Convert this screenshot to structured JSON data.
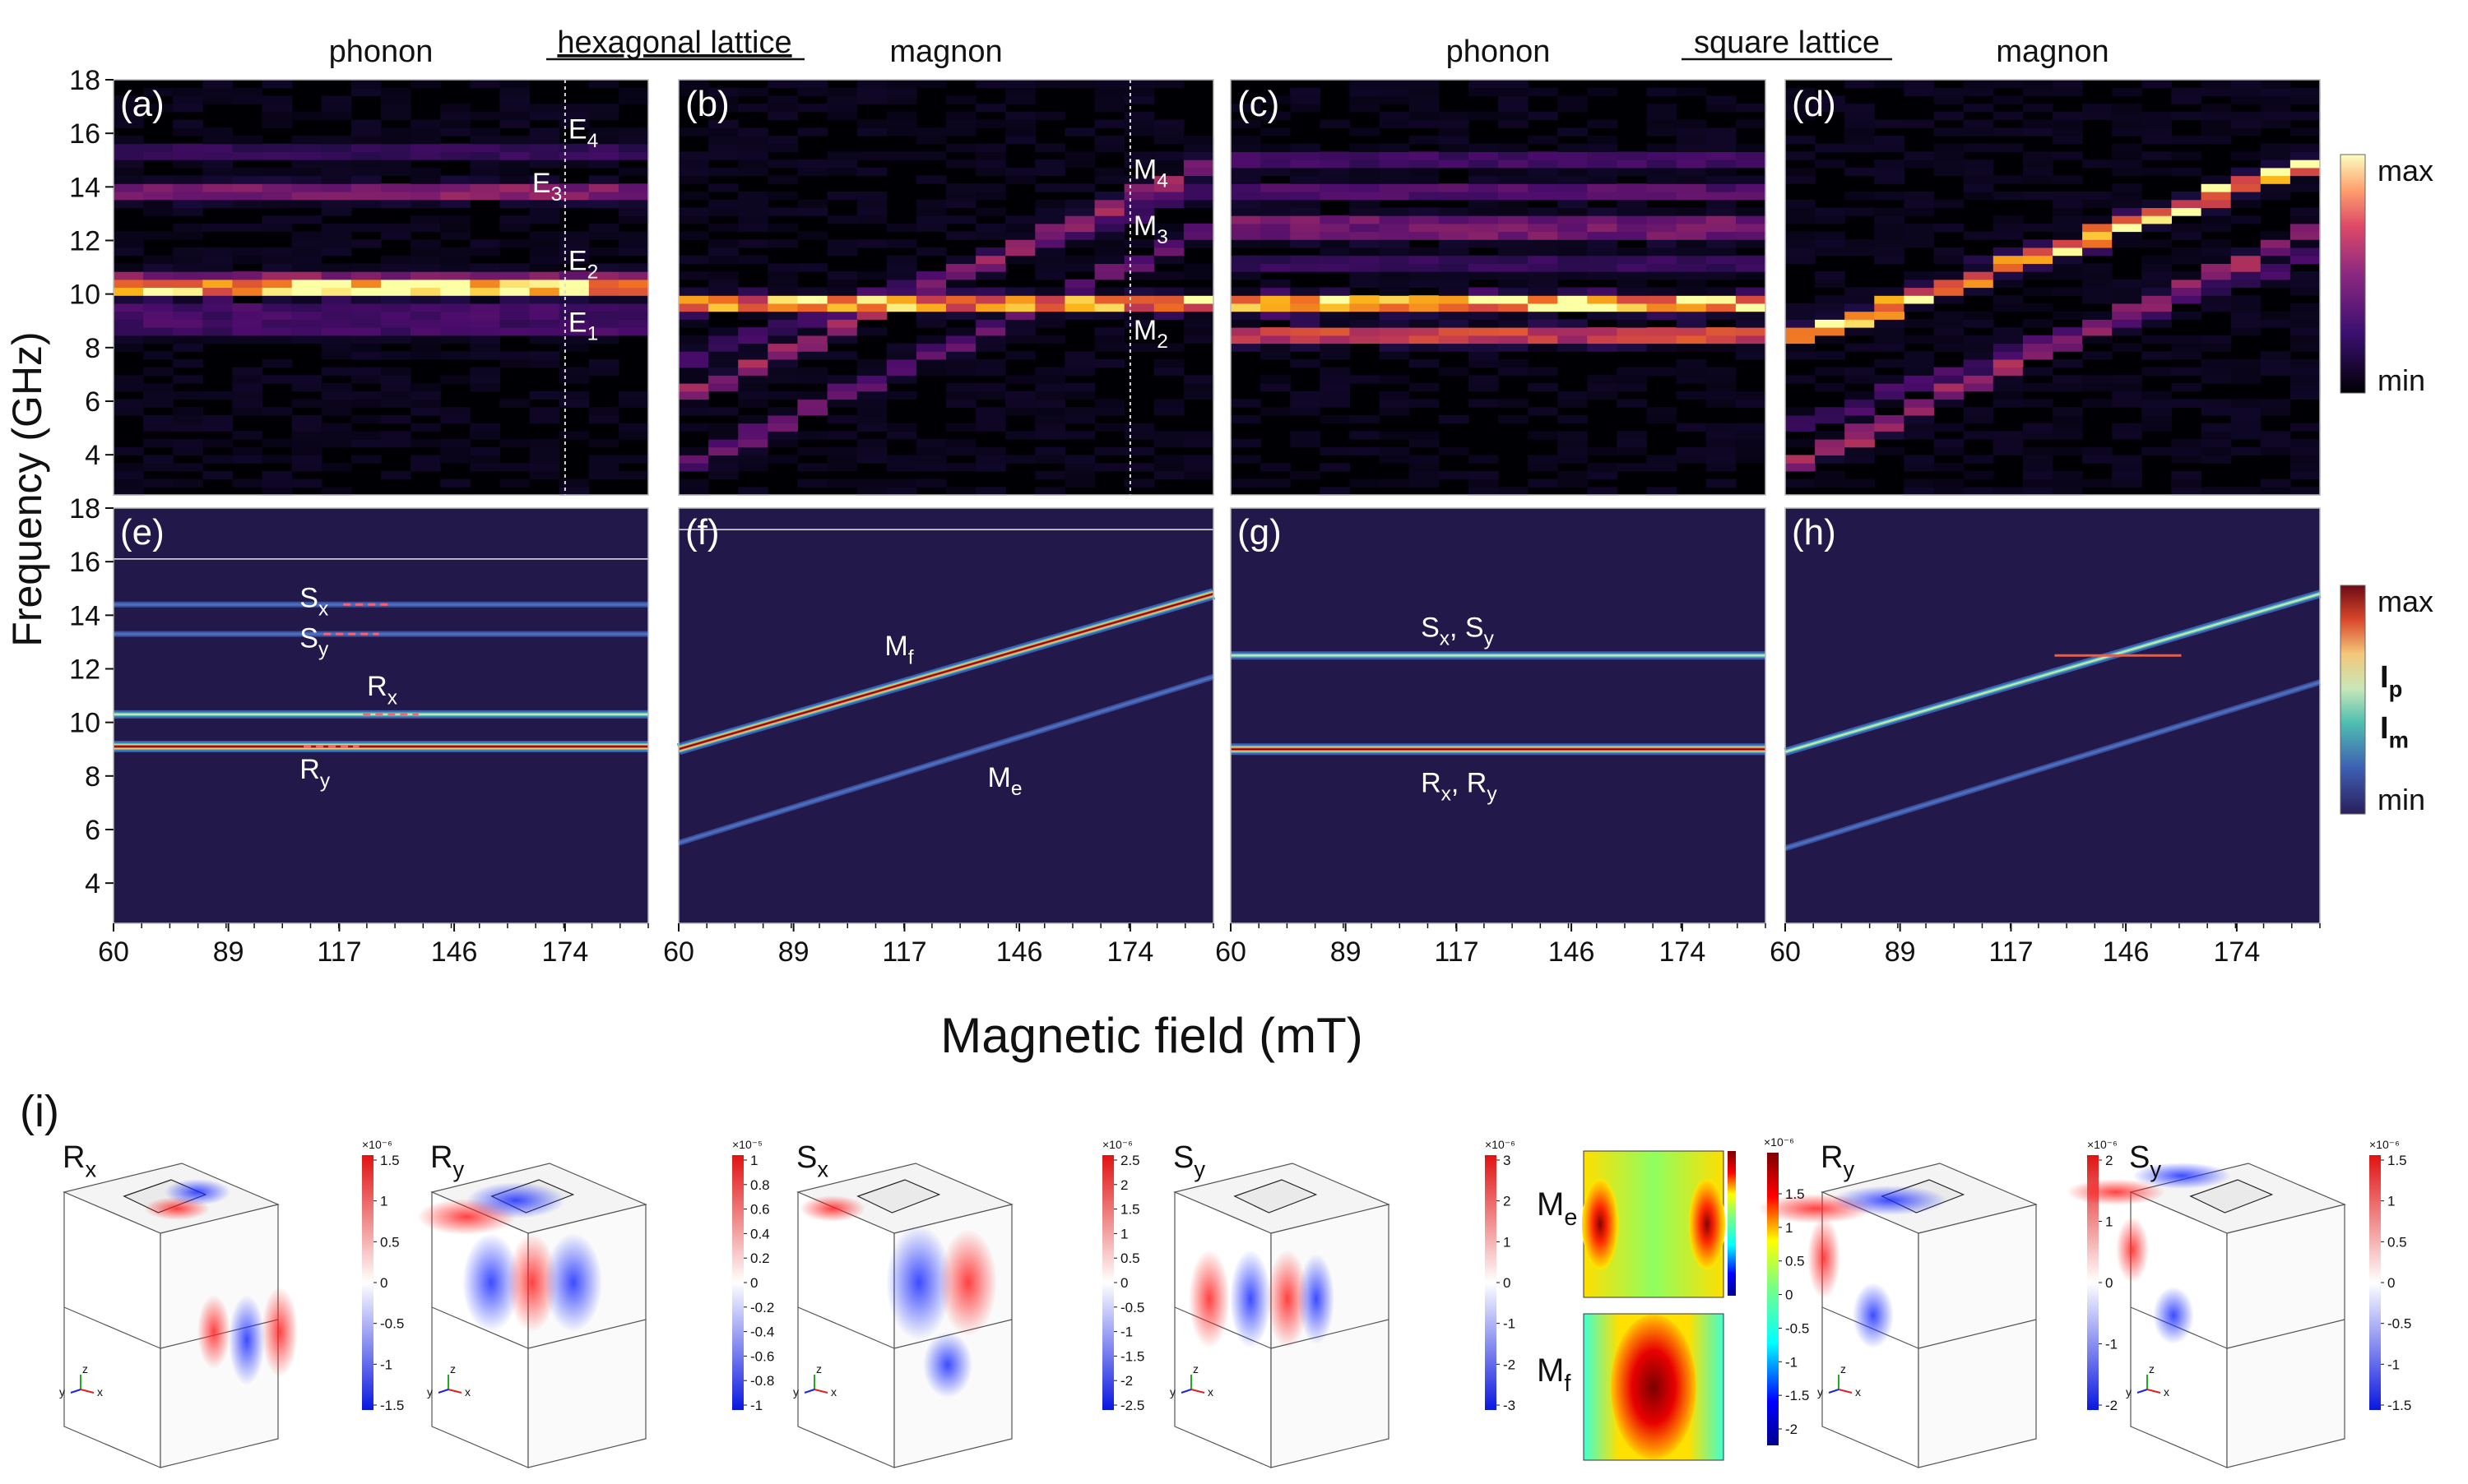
{
  "figure": {
    "group_hex": "hexagonal lattice",
    "group_square": "square lattice",
    "ylabel": "Frequency (GHz)",
    "xlabel": "Magnetic field (mT)",
    "yticks": [
      "18",
      "16",
      "14",
      "12",
      "10",
      "8",
      "6",
      "4"
    ],
    "xticks": [
      "60",
      "89",
      "117",
      "146",
      "174"
    ],
    "colorbar_top": {
      "max": "max",
      "min": "min"
    },
    "colorbar_bottom": {
      "max": "max",
      "ip": "I",
      "ip_sub": "p",
      "im": "I",
      "im_sub": "m",
      "min": "min"
    },
    "panel_i_label": "(i)"
  },
  "chart_data": [
    {
      "id": "a",
      "type": "heatmap",
      "label": "(a)",
      "title": "phonon",
      "x_range": [
        60,
        195
      ],
      "y_range": [
        2.5,
        18
      ],
      "xlabel": "Magnetic field (mT)",
      "ylabel": "Frequency (GHz)",
      "bands": [
        {
          "f": 10.2,
          "level": 1.0
        },
        {
          "f": 10.6,
          "level": 0.55
        },
        {
          "f": 13.9,
          "level": 0.55
        },
        {
          "f": 8.8,
          "level": 0.35
        },
        {
          "f": 9.3,
          "level": 0.35
        },
        {
          "f": 15.4,
          "level": 0.3
        }
      ],
      "marker_field": 174,
      "annotations": [
        {
          "text": "E",
          "sub": "4",
          "f": 15.8
        },
        {
          "text": "E",
          "sub": "3",
          "f": 13.8
        },
        {
          "text": "E",
          "sub": "2",
          "f": 10.9
        },
        {
          "text": "E",
          "sub": "1",
          "f": 8.6
        }
      ]
    },
    {
      "id": "b",
      "type": "heatmap",
      "label": "(b)",
      "title": "magnon",
      "x_range": [
        60,
        195
      ],
      "y_range": [
        2.5,
        18
      ],
      "lines": [
        {
          "f0": 9.6,
          "f1": 9.6,
          "level": 0.95
        },
        {
          "f0": 6.0,
          "f1": 15.0,
          "level": 0.6
        },
        {
          "f0": 3.5,
          "f1": 12.5,
          "level": 0.45
        },
        {
          "f0": 7.5,
          "f1": 14.0,
          "level": 0.35
        }
      ],
      "marker_field": 174,
      "annotations": [
        {
          "text": "M",
          "sub": "4",
          "f": 14.3
        },
        {
          "text": "M",
          "sub": "3",
          "f": 12.2
        },
        {
          "text": "M",
          "sub": "2",
          "f": 8.3
        }
      ]
    },
    {
      "id": "c",
      "type": "heatmap",
      "label": "(c)",
      "title": "phonon",
      "x_range": [
        60,
        195
      ],
      "y_range": [
        2.5,
        18
      ],
      "bands": [
        {
          "f": 9.6,
          "level": 1.0
        },
        {
          "f": 8.4,
          "level": 0.75
        },
        {
          "f": 12.5,
          "level": 0.5
        },
        {
          "f": 13.8,
          "level": 0.4
        },
        {
          "f": 14.9,
          "level": 0.35
        },
        {
          "f": 11.2,
          "level": 0.3
        }
      ]
    },
    {
      "id": "d",
      "type": "heatmap",
      "label": "(d)",
      "title": "magnon",
      "x_range": [
        60,
        195
      ],
      "y_range": [
        2.5,
        18
      ],
      "lines": [
        {
          "f0": 8.2,
          "f1": 15.0,
          "level": 0.95
        },
        {
          "f0": 3.5,
          "f1": 12.5,
          "level": 0.6
        },
        {
          "f0": 5.0,
          "f1": 11.5,
          "level": 0.35
        }
      ]
    },
    {
      "id": "e",
      "type": "line",
      "label": "(e)",
      "x_range": [
        60,
        195
      ],
      "y_range": [
        2.5,
        18
      ],
      "lines": [
        {
          "f": 9.1,
          "kind": "strong"
        },
        {
          "f": 10.3,
          "kind": "medium"
        },
        {
          "f": 13.3,
          "kind": "weak"
        },
        {
          "f": 14.4,
          "kind": "weak"
        },
        {
          "f": 16.1,
          "kind": "thin"
        }
      ],
      "dashes": [
        {
          "f": 14.4,
          "x0": 118,
          "x1": 130
        },
        {
          "f": 13.3,
          "x0": 113,
          "x1": 127
        },
        {
          "f": 10.3,
          "x0": 123,
          "x1": 137
        },
        {
          "f": 9.1,
          "x0": 108,
          "x1": 122
        }
      ],
      "annotations": [
        {
          "text": "S",
          "sub": "x",
          "field": 107,
          "f": 14.3
        },
        {
          "text": "S",
          "sub": "y",
          "field": 107,
          "f": 12.8
        },
        {
          "text": "R",
          "sub": "x",
          "field": 124,
          "f": 11.0
        },
        {
          "text": "R",
          "sub": "y",
          "field": 107,
          "f": 7.9
        }
      ]
    },
    {
      "id": "f",
      "type": "line",
      "label": "(f)",
      "x_range": [
        60,
        195
      ],
      "y_range": [
        2.5,
        18
      ],
      "lines": [
        {
          "f0": 9.0,
          "f1": 14.8,
          "kind": "strong"
        },
        {
          "f0": 5.5,
          "f1": 11.7,
          "kind": "weak"
        },
        {
          "f": 17.2,
          "kind": "thin"
        }
      ],
      "annotations": [
        {
          "text": "M",
          "sub": "f",
          "field": 112,
          "f": 12.5
        },
        {
          "text": "M",
          "sub": "e",
          "field": 138,
          "f": 7.6
        }
      ]
    },
    {
      "id": "g",
      "type": "line",
      "label": "(g)",
      "x_range": [
        60,
        195
      ],
      "y_range": [
        2.5,
        18
      ],
      "lines": [
        {
          "f": 9.0,
          "kind": "strong"
        },
        {
          "f": 12.5,
          "kind": "medium"
        }
      ],
      "annotations": [
        {
          "text": "S",
          "sub": "x",
          "text2": "S",
          "sub2": "y",
          "field": 108,
          "f": 13.2
        },
        {
          "text": "R",
          "sub": "x",
          "text2": "R",
          "sub2": "y",
          "field": 108,
          "f": 7.4
        }
      ]
    },
    {
      "id": "h",
      "type": "line",
      "label": "(h)",
      "x_range": [
        60,
        195
      ],
      "y_range": [
        2.5,
        18
      ],
      "lines": [
        {
          "f0": 8.9,
          "f1": 14.8,
          "kind": "medium"
        },
        {
          "f0": 5.3,
          "f1": 11.5,
          "kind": "weak"
        },
        {
          "f": 12.5,
          "kind": "short"
        }
      ]
    }
  ],
  "modes": [
    {
      "title": "R",
      "sub": "x",
      "exp": "×10⁻⁶",
      "ticks": [
        "1.5",
        "1",
        "0.5",
        "0",
        "-0.5",
        "-1",
        "-1.5"
      ]
    },
    {
      "title": "R",
      "sub": "y",
      "exp": "×10⁻⁵",
      "ticks": [
        "1",
        "0.8",
        "0.6",
        "0.4",
        "0.2",
        "0",
        "-0.2",
        "-0.4",
        "-0.6",
        "-0.8",
        "-1"
      ]
    },
    {
      "title": "S",
      "sub": "x",
      "exp": "×10⁻⁶",
      "ticks": [
        "2.5",
        "2",
        "1.5",
        "1",
        "0.5",
        "0",
        "-0.5",
        "-1",
        "-1.5",
        "-2",
        "-2.5"
      ]
    },
    {
      "title": "S",
      "sub": "y",
      "exp": "×10⁻⁶",
      "ticks": [
        "3",
        "2",
        "1",
        "0",
        "-1",
        "-2",
        "-3"
      ]
    },
    {
      "title": "R",
      "sub": "y",
      "exp": "×10⁻⁶",
      "ticks": [
        "2",
        "1",
        "0",
        "-1",
        "-2"
      ]
    },
    {
      "title": "S",
      "sub": "y",
      "exp": "×10⁻⁶",
      "ticks": [
        "1.5",
        "1",
        "0.5",
        "0",
        "-0.5",
        "-1",
        "-1.5"
      ]
    }
  ],
  "magnon_modes": {
    "exp": "×10⁻⁶",
    "ticks": [
      "1.5",
      "1",
      "0.5",
      "0",
      "-0.5",
      "-1",
      "-1.5",
      "-2"
    ],
    "labels": [
      {
        "text": "M",
        "sub": "e"
      },
      {
        "text": "M",
        "sub": "f"
      }
    ]
  },
  "axis_triad": {
    "y": "y",
    "z": "z",
    "x": "x"
  }
}
